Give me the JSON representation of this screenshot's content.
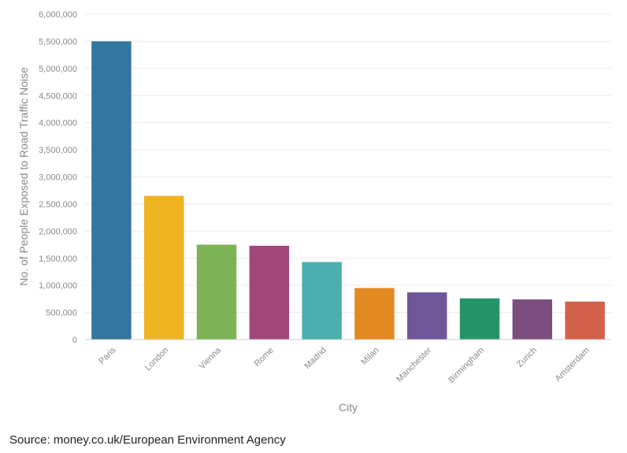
{
  "chart_data": {
    "type": "bar",
    "title": "",
    "xlabel": "City",
    "ylabel": "No. of People Exposed to Road Traffic Noise",
    "categories": [
      "Paris",
      "London",
      "Vienna",
      "Rome",
      "Madrid",
      "Milan",
      "Manchester",
      "Birmingham",
      "Zurich",
      "Amsterdam"
    ],
    "values": [
      5500000,
      2650000,
      1750000,
      1730000,
      1430000,
      950000,
      870000,
      760000,
      740000,
      700000
    ],
    "colors": [
      "#33769f",
      "#eeb422",
      "#7db356",
      "#a2467a",
      "#4aafae",
      "#e38921",
      "#6e5799",
      "#259466",
      "#7b4e7f",
      "#d4604b"
    ],
    "ylim": [
      0,
      6000000
    ],
    "yticks": [
      0,
      500000,
      1000000,
      1500000,
      2000000,
      2500000,
      3000000,
      3500000,
      4000000,
      4500000,
      5000000,
      5500000,
      6000000
    ],
    "ytick_labels": [
      "0",
      "500,000",
      "1,000,000",
      "1,500,000",
      "2,000,000",
      "2,500,000",
      "3,000,000",
      "3,500,000",
      "4,000,000",
      "4,500,000",
      "5,000,000",
      "5,500,000",
      "6,000,000"
    ],
    "grid": true,
    "legend": "none"
  },
  "source": "Source: money.co.uk/European Environment Agency"
}
